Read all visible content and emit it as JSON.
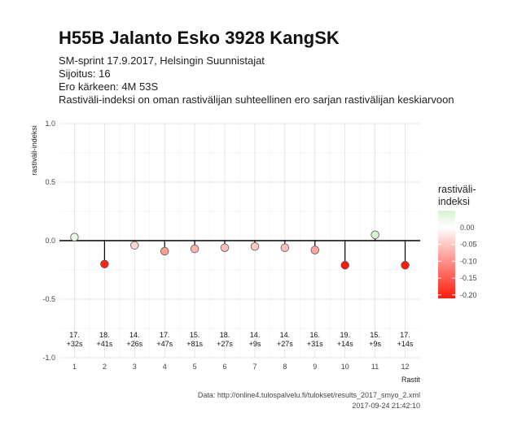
{
  "header": {
    "title": "H55B Jalanto Esko 3928 KangSK",
    "lines": [
      "SM-sprint 17.9.2017, Helsingin Suunnistajat",
      "Sijoitus: 16",
      "Ero kärkeen: 4M 53S",
      "Rastiväli-indeksi on oman rastivälijan suhteellinen ero sarjan rastivälijan keskiarvoon"
    ]
  },
  "chart_data": {
    "type": "scatter",
    "style": "lollipop",
    "xlabel": "Rastit",
    "ylabel": "rastiväli-indeksi",
    "x": [
      1,
      2,
      3,
      4,
      5,
      6,
      7,
      8,
      9,
      10,
      11,
      12
    ],
    "y": [
      0.03,
      -0.2,
      -0.04,
      -0.09,
      -0.07,
      -0.06,
      -0.05,
      -0.06,
      -0.08,
      -0.21,
      0.05,
      -0.21
    ],
    "ylim": [
      -1.0,
      1.0
    ],
    "xlim": [
      0.5,
      12.5
    ],
    "yticks": [
      -1.0,
      -0.5,
      0.0,
      0.5,
      1.0
    ],
    "ytick_labels": [
      "-1.0",
      "-0.5",
      "0.0",
      "0.5",
      "1.0"
    ],
    "xtick_labels": [
      "1",
      "2",
      "3",
      "4",
      "5",
      "6",
      "7",
      "8",
      "9",
      "10",
      "11",
      "12"
    ],
    "annotations": [
      [
        "17.",
        "+32s"
      ],
      [
        "18.",
        "+41s"
      ],
      [
        "14.",
        "+26s"
      ],
      [
        "17.",
        "+47s"
      ],
      [
        "15.",
        "+81s"
      ],
      [
        "18.",
        "+27s"
      ],
      [
        "14.",
        "+9s"
      ],
      [
        "14.",
        "+27s"
      ],
      [
        "16.",
        "+31s"
      ],
      [
        "19.",
        "+14s"
      ],
      [
        "15.",
        "+9s"
      ],
      [
        "17.",
        "+14s"
      ]
    ],
    "grid": true,
    "colorscale": {
      "low": "#ff1a0a",
      "mid": "#ffffff",
      "high": "#d9f2d0",
      "min": -0.21,
      "max": 0.05
    },
    "legend": {
      "title": [
        "rastiväli-",
        "indeksi"
      ],
      "ticks": [
        0.0,
        -0.05,
        -0.1,
        -0.15,
        -0.2
      ],
      "tick_labels": [
        "0.00",
        "-0.05",
        "-0.10",
        "-0.15",
        "-0.20"
      ],
      "placement": "right"
    }
  },
  "caption": {
    "source": "Data: http://online4.tulospalvelu.fi/tulokset/results_2017_smyo_2.xml",
    "timestamp": "2017-09-24 21:42:10"
  }
}
